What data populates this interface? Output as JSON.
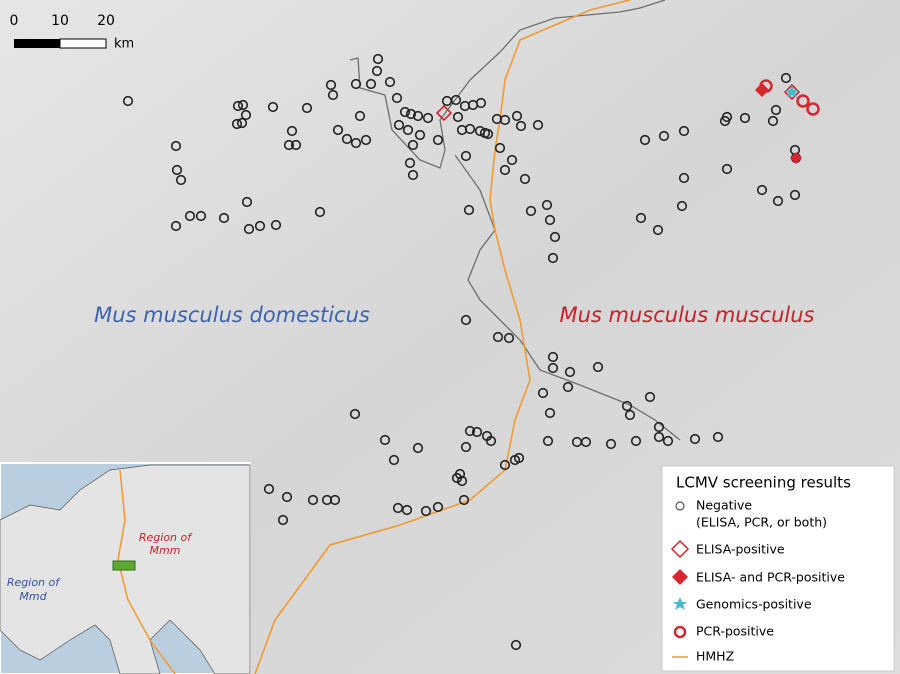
{
  "scale_bar": {
    "ticks": [
      0,
      10,
      20
    ],
    "unit": "km"
  },
  "region_labels": {
    "west": "Mus musculus domesticus",
    "east": "Mus musculus musculus"
  },
  "inset": {
    "mmm": [
      "Region of",
      "Mmm"
    ],
    "mmd": [
      "Region of",
      "Mmd"
    ]
  },
  "legend": {
    "title": "LCMV screening results",
    "items": [
      {
        "label": [
          "Negative",
          "(ELISA, PCR, or both)"
        ]
      },
      {
        "label": [
          "ELISA-positive"
        ]
      },
      {
        "label": [
          "ELISA- and PCR-positive"
        ]
      },
      {
        "label": [
          "Genomics-positive"
        ]
      },
      {
        "label": [
          "PCR-positive"
        ]
      },
      {
        "label": [
          "HMHZ"
        ]
      }
    ]
  }
}
